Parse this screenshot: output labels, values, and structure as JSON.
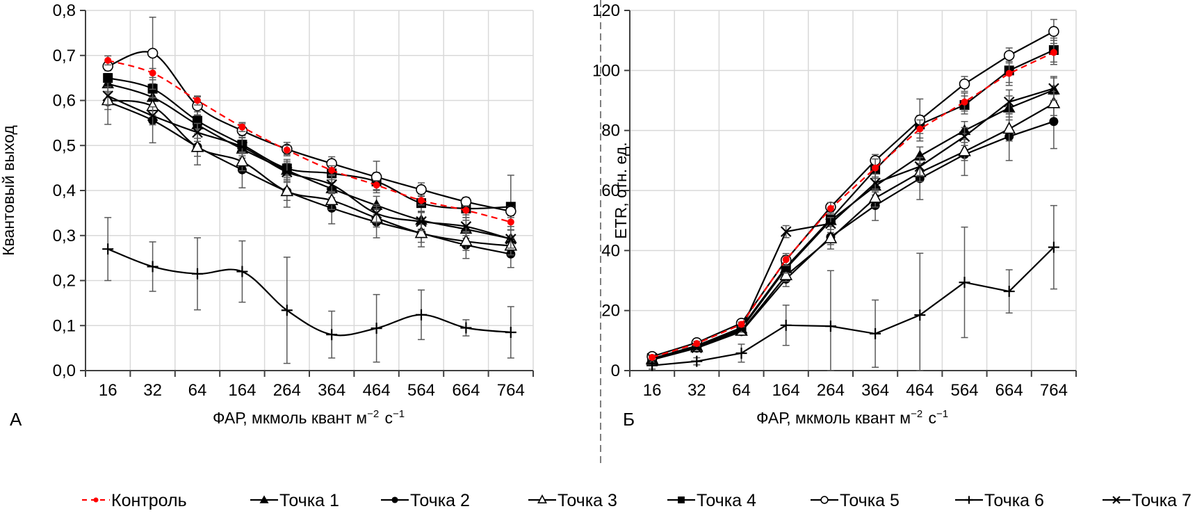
{
  "chart_data": [
    {
      "type": "line",
      "panel_label": "А",
      "title": "",
      "xlabel": "ФАР, мкмоль квант м⁻² с⁻¹",
      "ylabel": "Квантовый  выход",
      "categories": [
        "16",
        "32",
        "64",
        "164",
        "264",
        "364",
        "464",
        "564",
        "664",
        "764"
      ],
      "ylim": [
        0,
        0.8
      ],
      "yticks": [
        0,
        0.1,
        0.2,
        0.3,
        0.4,
        0.5,
        0.6,
        0.7,
        0.8
      ],
      "ytick_labels": [
        "0,0",
        "0,1",
        "0,2",
        "0,3",
        "0,4",
        "0,5",
        "0,6",
        "0,7",
        "0,8"
      ],
      "grid": true,
      "smoothed": true,
      "series": [
        {
          "name": "Контроль",
          "values": [
            0.689,
            0.661,
            0.6,
            0.541,
            0.49,
            0.445,
            0.412,
            0.378,
            0.356,
            0.33
          ],
          "errors": [
            0.01,
            0.01,
            0.01,
            0.01,
            0.01,
            0.01,
            0.01,
            0.01,
            0.01,
            0.01
          ]
        },
        {
          "name": "Точка 1",
          "values": [
            0.637,
            0.607,
            0.546,
            0.492,
            0.445,
            0.404,
            0.367,
            0.334,
            0.314,
            0.293
          ],
          "errors": [
            0.02,
            0.03,
            0.02,
            0.02,
            0.02,
            0.02,
            0.02,
            0.02,
            0.02,
            0.02
          ]
        },
        {
          "name": "Точка 2",
          "values": [
            0.597,
            0.556,
            0.497,
            0.446,
            0.398,
            0.361,
            0.33,
            0.305,
            0.279,
            0.259
          ],
          "errors": [
            0.05,
            0.05,
            0.04,
            0.04,
            0.035,
            0.035,
            0.035,
            0.03,
            0.03,
            0.03
          ]
        },
        {
          "name": "Точка 3",
          "values": [
            0.6,
            0.587,
            0.496,
            0.464,
            0.398,
            0.378,
            0.339,
            0.305,
            0.287,
            0.277
          ],
          "errors": [
            0.02,
            0.02,
            0.02,
            0.02,
            0.02,
            0.02,
            0.02,
            0.02,
            0.02,
            0.02
          ]
        },
        {
          "name": "Точка 4",
          "values": [
            0.65,
            0.626,
            0.555,
            0.502,
            0.449,
            0.438,
            0.42,
            0.372,
            0.36,
            0.364
          ],
          "errors": [
            0.01,
            0.02,
            0.02,
            0.02,
            0.02,
            0.02,
            0.02,
            0.02,
            0.02,
            0.07
          ]
        },
        {
          "name": "Точка 5",
          "values": [
            0.676,
            0.705,
            0.588,
            0.533,
            0.492,
            0.46,
            0.43,
            0.402,
            0.375,
            0.354
          ],
          "errors": [
            0.01,
            0.08,
            0.02,
            0.015,
            0.015,
            0.015,
            0.035,
            0.015,
            0.01,
            0.01
          ]
        },
        {
          "name": "Точка 6",
          "values": [
            0.27,
            0.231,
            0.215,
            0.22,
            0.134,
            0.08,
            0.094,
            0.124,
            0.095,
            0.085
          ],
          "errors": [
            0.07,
            0.055,
            0.08,
            0.068,
            0.118,
            0.052,
            0.075,
            0.055,
            0.018,
            0.057
          ]
        },
        {
          "name": "Точка 7",
          "values": [
            0.61,
            0.566,
            0.529,
            0.497,
            0.441,
            0.413,
            0.349,
            0.331,
            0.32,
            0.292
          ],
          "errors": [
            0.02,
            0.02,
            0.02,
            0.02,
            0.02,
            0.02,
            0.02,
            0.02,
            0.02,
            0.02
          ]
        }
      ]
    },
    {
      "type": "line",
      "panel_label": "Б",
      "title": "",
      "xlabel": "ФАР, мкмоль квант м⁻² с⁻¹",
      "ylabel": "ETR, отн. ед.",
      "categories": [
        "16",
        "32",
        "64",
        "164",
        "264",
        "364",
        "464",
        "564",
        "664",
        "764"
      ],
      "ylim": [
        0,
        120
      ],
      "yticks": [
        0,
        20,
        40,
        60,
        80,
        100,
        120
      ],
      "ytick_labels": [
        "0",
        "20",
        "40",
        "60",
        "80",
        "100",
        "120"
      ],
      "grid": true,
      "smoothed": false,
      "series": [
        {
          "name": "Контроль",
          "values": [
            4.4,
            9.0,
            15.4,
            37.0,
            54.0,
            67.5,
            80.5,
            89.5,
            99.0,
            106.0
          ],
          "errors": [
            0.8,
            0.8,
            0.8,
            2.0,
            2.0,
            3.0,
            3.0,
            3.0,
            4.0,
            4.0
          ]
        },
        {
          "name": "Точка 1",
          "values": [
            3.9,
            8.1,
            13.9,
            34.0,
            50.0,
            61.5,
            71.5,
            80.0,
            87.5,
            93.5
          ],
          "errors": [
            0.8,
            0.8,
            0.8,
            2.0,
            2.0,
            3.0,
            3.0,
            3.0,
            4.0,
            4.0
          ]
        },
        {
          "name": "Точка 2",
          "values": [
            3.6,
            7.5,
            13.0,
            30.5,
            44.5,
            55.0,
            64.0,
            72.0,
            78.0,
            83.0
          ],
          "errors": [
            0.8,
            0.8,
            0.8,
            2.5,
            4.0,
            5.0,
            7.0,
            7.0,
            8.0,
            9.0
          ]
        },
        {
          "name": "Точка 3",
          "values": [
            3.6,
            7.7,
            13.2,
            31.7,
            44.0,
            57.5,
            66.0,
            73.0,
            80.5,
            89.0
          ],
          "errors": [
            0.8,
            0.8,
            0.8,
            2.0,
            2.0,
            3.0,
            3.0,
            3.0,
            4.0,
            4.0
          ]
        },
        {
          "name": "Точка 4",
          "values": [
            4.0,
            8.3,
            14.3,
            34.5,
            50.5,
            67.0,
            82.0,
            88.5,
            100.0,
            106.8
          ],
          "errors": [
            0.8,
            0.8,
            0.8,
            2.0,
            2.0,
            3.0,
            3.0,
            3.0,
            4.0,
            4.0
          ]
        },
        {
          "name": "Точка 5",
          "values": [
            4.7,
            9.3,
            15.8,
            36.8,
            54.5,
            70.0,
            83.5,
            95.5,
            105.0,
            113.0
          ],
          "errors": [
            0.8,
            0.8,
            0.8,
            1.5,
            1.5,
            2.0,
            7.0,
            2.5,
            2.5,
            4.0
          ]
        },
        {
          "name": "Точка 6",
          "values": [
            1.7,
            3.1,
            5.8,
            15.1,
            14.8,
            12.3,
            18.5,
            29.4,
            26.4,
            41.1
          ],
          "errors": [
            1.2,
            1.2,
            3.0,
            6.7,
            18.5,
            11.2,
            20.6,
            18.4,
            7.2,
            13.9
          ]
        },
        {
          "name": "Точка 7",
          "values": [
            4.1,
            7.6,
            13.7,
            46.3,
            49.0,
            62.5,
            68.0,
            78.0,
            89.5,
            94.0
          ],
          "errors": [
            0.8,
            0.8,
            0.8,
            2.0,
            2.0,
            3.0,
            3.0,
            3.0,
            4.0,
            4.0
          ]
        }
      ]
    }
  ],
  "legend": {
    "placement": "bottom",
    "items": [
      {
        "name": "Контроль",
        "marker": "small-dot",
        "line": "dashed",
        "color": "#ff0000"
      },
      {
        "name": "Точка 1",
        "marker": "filled-triangle",
        "line": "solid",
        "color": "#000000"
      },
      {
        "name": "Точка 2",
        "marker": "filled-circle",
        "line": "solid",
        "color": "#000000"
      },
      {
        "name": "Точка 3",
        "marker": "open-triangle",
        "line": "solid",
        "color": "#000000"
      },
      {
        "name": "Точка 4",
        "marker": "filled-square",
        "line": "solid",
        "color": "#000000"
      },
      {
        "name": "Точка 5",
        "marker": "open-circle",
        "line": "solid",
        "color": "#000000"
      },
      {
        "name": "Точка 6",
        "marker": "plus",
        "line": "solid",
        "color": "#000000"
      },
      {
        "name": "Точка 7",
        "marker": "x-cross",
        "line": "solid",
        "color": "#000000"
      }
    ]
  }
}
